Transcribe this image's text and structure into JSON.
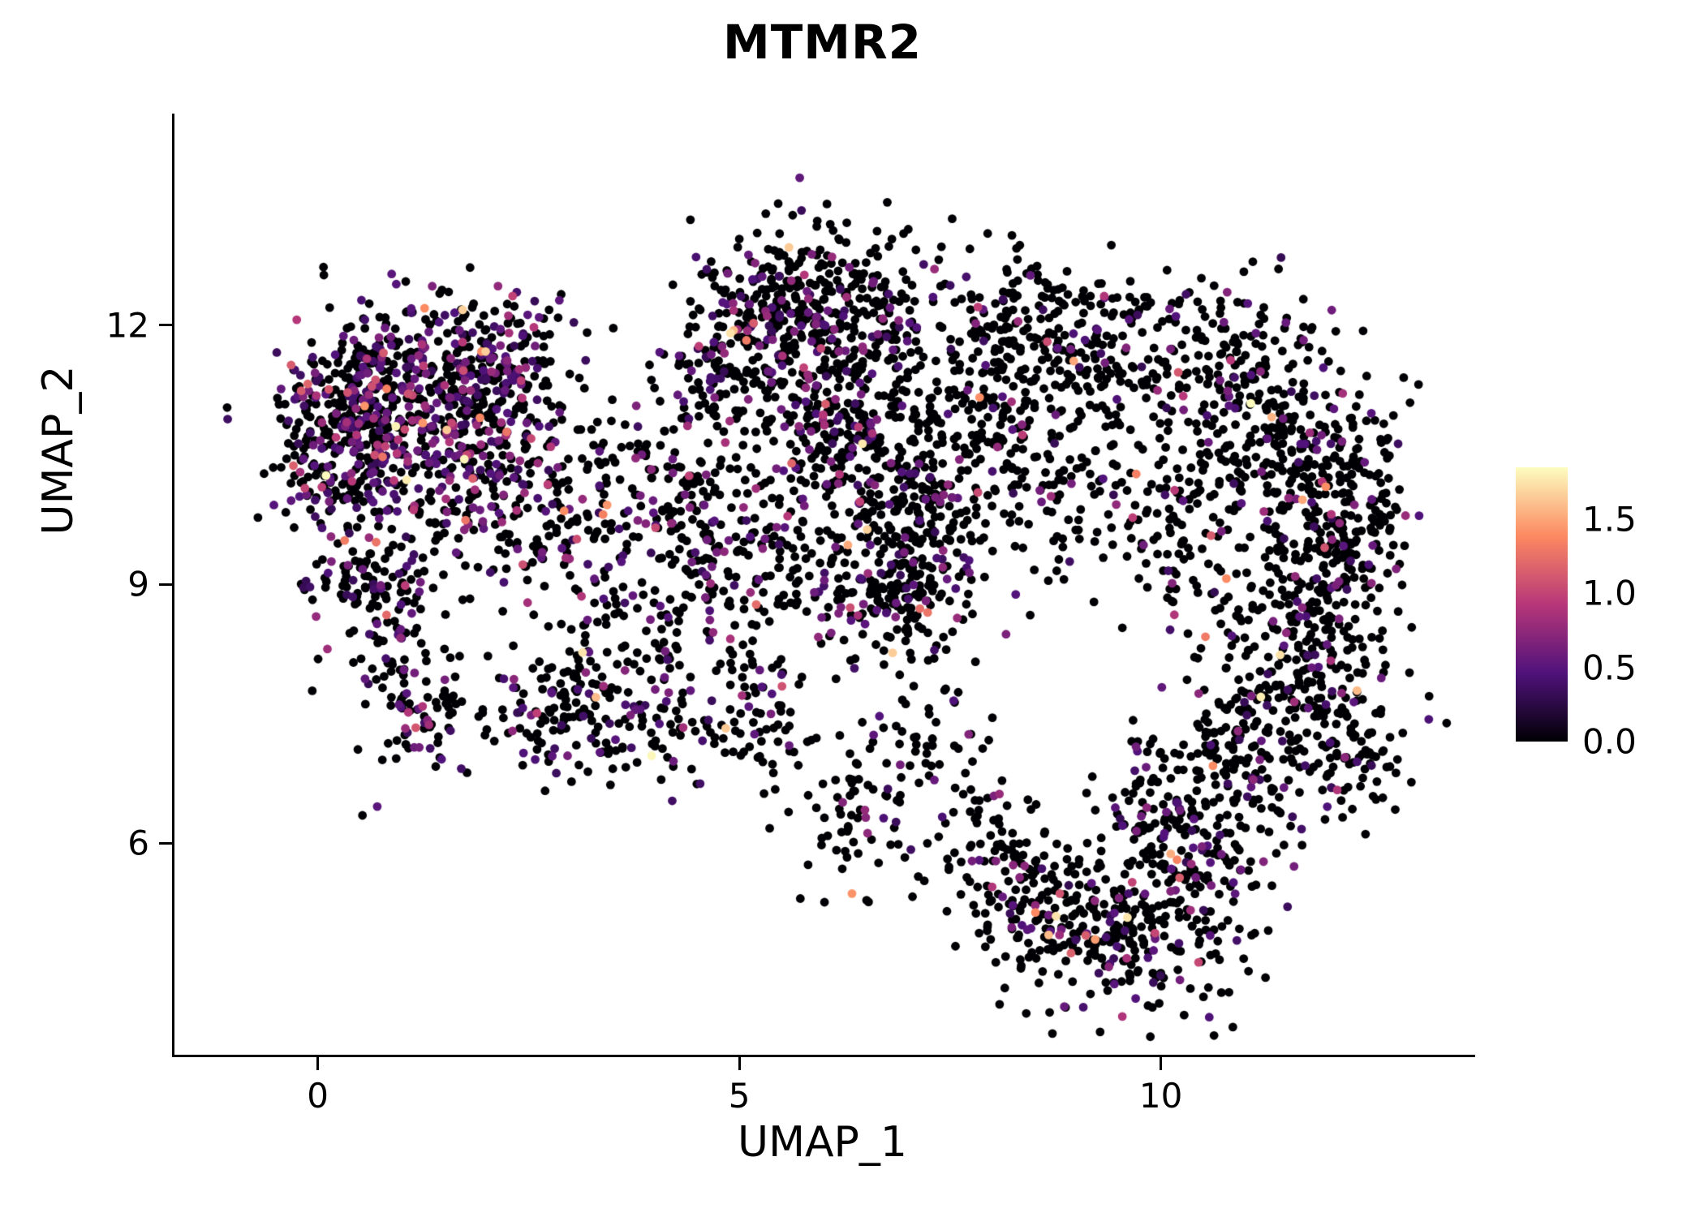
{
  "chart_data": {
    "type": "scatter",
    "title": "MTMR2",
    "xlabel": "UMAP_1",
    "ylabel": "UMAP_2",
    "x_ticks": [
      0,
      5,
      10
    ],
    "y_ticks": [
      6,
      9,
      12
    ],
    "x_domain": [
      -1.7,
      13.7
    ],
    "y_domain": [
      3.55,
      14.45
    ],
    "grid": false,
    "background": "#ffffff",
    "axis_color": "#000000",
    "point_radius_px": 5.4,
    "seed": 7,
    "legend": {
      "position": "right",
      "range": [
        0,
        1.85
      ],
      "ticks": [
        {
          "label": "1.5",
          "value": 1.5
        },
        {
          "label": "1.0",
          "value": 1.0
        },
        {
          "label": "0.5",
          "value": 0.5
        },
        {
          "label": "0.0",
          "value": 0.0
        }
      ]
    },
    "colormap": {
      "name": "magma",
      "stops": [
        {
          "t": 0.0,
          "color": "#000004"
        },
        {
          "t": 0.25,
          "color": "#50127b"
        },
        {
          "t": 0.5,
          "color": "#b73779"
        },
        {
          "t": 0.75,
          "color": "#fc8961"
        },
        {
          "t": 1.0,
          "color": "#fcfdbf"
        }
      ]
    },
    "expression_model": {
      "base": 0.3,
      "spread": 0.32,
      "hot_prob": 0.06,
      "hot_min": 1.05,
      "hot_span": 0.8,
      "max": 1.85
    },
    "cluster_fields": [
      "x",
      "y",
      "sx",
      "sy",
      "n",
      "p_expressed"
    ],
    "clusters": [
      [
        0.5,
        11.2,
        0.5,
        0.45,
        240,
        0.42
      ],
      [
        1.5,
        11.4,
        0.55,
        0.45,
        240,
        0.4
      ],
      [
        0.2,
        10.4,
        0.4,
        0.4,
        150,
        0.4
      ],
      [
        1.2,
        10.1,
        0.5,
        0.4,
        150,
        0.35
      ],
      [
        2.2,
        10.7,
        0.5,
        0.45,
        140,
        0.32
      ],
      [
        2.1,
        11.6,
        0.4,
        0.4,
        110,
        0.35
      ],
      [
        0.9,
        8.7,
        0.35,
        0.4,
        85,
        0.28
      ],
      [
        1.3,
        7.6,
        0.45,
        0.4,
        100,
        0.28
      ],
      [
        0.3,
        9.1,
        0.3,
        0.3,
        45,
        0.25
      ],
      [
        2.8,
        9.6,
        0.5,
        0.45,
        110,
        0.3
      ],
      [
        3.4,
        8.4,
        0.35,
        0.45,
        55,
        0.25
      ],
      [
        2.8,
        7.5,
        0.4,
        0.35,
        90,
        0.28
      ],
      [
        3.9,
        7.3,
        0.45,
        0.4,
        85,
        0.22
      ],
      [
        4.3,
        8.6,
        0.35,
        0.45,
        55,
        0.22
      ],
      [
        4.1,
        10.3,
        0.55,
        0.5,
        120,
        0.22
      ],
      [
        4.8,
        9.5,
        0.45,
        0.4,
        90,
        0.2
      ],
      [
        5.6,
        9.1,
        0.4,
        0.35,
        65,
        0.2
      ],
      [
        5.5,
        12.3,
        0.5,
        0.45,
        240,
        0.2
      ],
      [
        6.5,
        12.1,
        0.5,
        0.45,
        180,
        0.18
      ],
      [
        5.0,
        11.4,
        0.45,
        0.4,
        120,
        0.2
      ],
      [
        6.1,
        11.2,
        0.45,
        0.35,
        90,
        0.18
      ],
      [
        6.4,
        10.4,
        0.65,
        0.5,
        230,
        0.18
      ],
      [
        7.3,
        9.8,
        0.5,
        0.45,
        150,
        0.18
      ],
      [
        6.8,
        8.8,
        0.45,
        0.35,
        170,
        0.26
      ],
      [
        5.2,
        7.5,
        0.3,
        0.5,
        80,
        0.2
      ],
      [
        7.2,
        7.3,
        0.3,
        0.45,
        45,
        0.15
      ],
      [
        6.4,
        6.2,
        0.4,
        0.45,
        70,
        0.18
      ],
      [
        8.3,
        12.0,
        0.5,
        0.45,
        150,
        0.14
      ],
      [
        9.3,
        11.7,
        0.5,
        0.5,
        140,
        0.12
      ],
      [
        7.9,
        11.0,
        0.4,
        0.4,
        60,
        0.12
      ],
      [
        9.2,
        10.1,
        0.7,
        0.55,
        130,
        0.1
      ],
      [
        10.8,
        11.6,
        0.5,
        0.55,
        150,
        0.12
      ],
      [
        11.6,
        10.6,
        0.5,
        0.55,
        190,
        0.12
      ],
      [
        11.9,
        9.3,
        0.5,
        0.6,
        200,
        0.12
      ],
      [
        11.7,
        8.0,
        0.55,
        0.55,
        210,
        0.15
      ],
      [
        11.0,
        7.0,
        0.5,
        0.5,
        160,
        0.15
      ],
      [
        10.4,
        9.6,
        0.35,
        0.75,
        90,
        0.1
      ],
      [
        12.5,
        9.9,
        0.25,
        0.6,
        70,
        0.12
      ],
      [
        12.4,
        7.0,
        0.3,
        0.4,
        55,
        0.12
      ],
      [
        8.6,
        5.3,
        0.5,
        0.45,
        150,
        0.15
      ],
      [
        9.6,
        4.9,
        0.55,
        0.45,
        170,
        0.18
      ],
      [
        10.4,
        5.8,
        0.45,
        0.5,
        150,
        0.15
      ],
      [
        8.0,
        6.0,
        0.35,
        0.4,
        65,
        0.12
      ],
      [
        9.9,
        6.5,
        0.35,
        0.35,
        50,
        0.12
      ],
      [
        7.8,
        10.9,
        0.45,
        0.45,
        45,
        0.12
      ]
    ]
  }
}
